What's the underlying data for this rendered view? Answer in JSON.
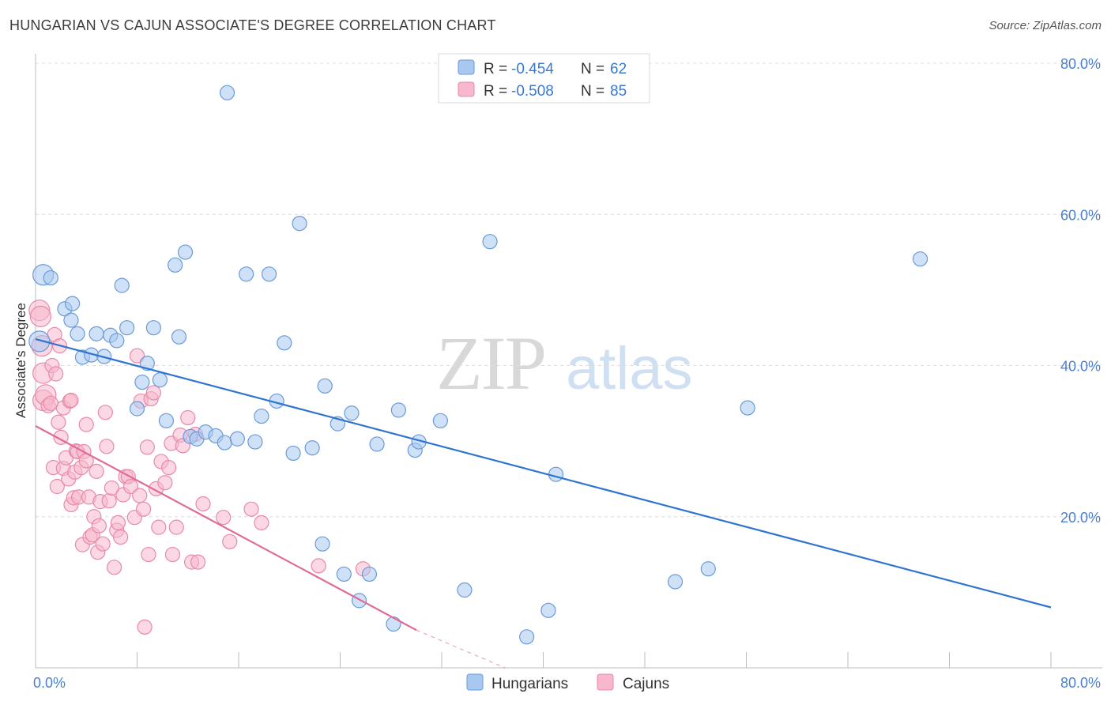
{
  "title": "HUNGARIAN VS CAJUN ASSOCIATE'S DEGREE CORRELATION CHART",
  "source": "Source: ZipAtlas.com",
  "watermark": {
    "zip": "ZIP",
    "atlas": "atlas"
  },
  "legend": {
    "rows": [
      {
        "r_label": "R = ",
        "r_value": "-0.454",
        "n_label": "N = ",
        "n_value": "62",
        "color": "#a8c8f0"
      },
      {
        "r_label": "R = ",
        "r_value": "-0.508",
        "n_label": "N = ",
        "n_value": "85",
        "color": "#f7b8cc"
      }
    ]
  },
  "bottom_legend": [
    "Hungarians",
    "Cajuns"
  ],
  "chart_data": {
    "type": "scatter",
    "title": "HUNGARIAN VS CAJUN ASSOCIATE'S DEGREE CORRELATION CHART",
    "xlabel": "",
    "ylabel": "Associate's Degree",
    "xlim": [
      0,
      80
    ],
    "ylim": [
      0,
      80
    ],
    "x_tick_labels": [
      "0.0%",
      "80.0%"
    ],
    "y_tick_labels": [
      "20.0%",
      "40.0%",
      "60.0%",
      "80.0%"
    ],
    "y_ticks": [
      20,
      40,
      60,
      80
    ],
    "series": [
      {
        "name": "Hungarians",
        "color": "#a8c8f0",
        "stroke": "#6a9ad8",
        "line_color": "#2f74d0",
        "trend": {
          "x0": 0,
          "y0": 43.5,
          "x1": 80,
          "y1": 8.0
        },
        "points": [
          [
            0.3,
            43.2
          ],
          [
            0.6,
            52.0
          ],
          [
            1.2,
            51.6
          ],
          [
            2.3,
            47.5
          ],
          [
            2.9,
            48.2
          ],
          [
            2.8,
            46.0
          ],
          [
            3.3,
            44.2
          ],
          [
            3.7,
            41.1
          ],
          [
            4.4,
            41.4
          ],
          [
            4.8,
            44.2
          ],
          [
            5.4,
            41.2
          ],
          [
            5.9,
            44.0
          ],
          [
            6.4,
            43.3
          ],
          [
            6.8,
            50.6
          ],
          [
            7.2,
            45.0
          ],
          [
            8.0,
            34.3
          ],
          [
            8.4,
            37.8
          ],
          [
            8.8,
            40.3
          ],
          [
            9.3,
            45.0
          ],
          [
            9.8,
            38.1
          ],
          [
            10.3,
            32.7
          ],
          [
            11.0,
            53.3
          ],
          [
            11.3,
            43.8
          ],
          [
            11.8,
            55.0
          ],
          [
            12.2,
            30.6
          ],
          [
            12.7,
            30.3
          ],
          [
            13.4,
            31.2
          ],
          [
            14.2,
            30.7
          ],
          [
            14.9,
            29.8
          ],
          [
            15.1,
            76.1
          ],
          [
            15.9,
            30.3
          ],
          [
            16.6,
            52.1
          ],
          [
            17.3,
            29.9
          ],
          [
            17.8,
            33.3
          ],
          [
            18.4,
            52.1
          ],
          [
            19.0,
            35.3
          ],
          [
            19.6,
            43.0
          ],
          [
            20.3,
            28.4
          ],
          [
            20.8,
            58.8
          ],
          [
            21.8,
            29.1
          ],
          [
            22.6,
            16.4
          ],
          [
            22.8,
            37.3
          ],
          [
            23.8,
            32.3
          ],
          [
            24.3,
            12.4
          ],
          [
            24.9,
            33.7
          ],
          [
            25.5,
            8.9
          ],
          [
            26.3,
            12.4
          ],
          [
            26.9,
            29.6
          ],
          [
            28.2,
            5.8
          ],
          [
            28.6,
            34.1
          ],
          [
            29.9,
            28.8
          ],
          [
            30.2,
            29.9
          ],
          [
            31.9,
            32.7
          ],
          [
            33.8,
            10.3
          ],
          [
            35.8,
            56.4
          ],
          [
            38.7,
            4.1
          ],
          [
            40.4,
            7.6
          ],
          [
            41.0,
            25.6
          ],
          [
            50.4,
            11.4
          ],
          [
            53.0,
            13.1
          ],
          [
            56.1,
            34.4
          ],
          [
            69.7,
            54.1
          ]
        ]
      },
      {
        "name": "Cajuns",
        "color": "#f7b8cc",
        "stroke": "#e889a8",
        "line_color": "#e06a98",
        "trend": {
          "x0": 0,
          "y0": 32.0,
          "x1": 30.0,
          "y1": 5.0
        },
        "trend_dashed": {
          "x0": 30.0,
          "y0": 5.0,
          "x1": 37.0,
          "y1": 0
        },
        "points": [
          [
            0.3,
            47.3
          ],
          [
            0.4,
            46.5
          ],
          [
            0.5,
            42.6
          ],
          [
            0.6,
            35.4
          ],
          [
            0.6,
            39.0
          ],
          [
            0.8,
            36.1
          ],
          [
            1.0,
            34.7
          ],
          [
            1.2,
            35.0
          ],
          [
            1.3,
            40.0
          ],
          [
            1.4,
            26.5
          ],
          [
            1.5,
            44.1
          ],
          [
            1.6,
            38.9
          ],
          [
            1.7,
            24.0
          ],
          [
            1.8,
            32.5
          ],
          [
            1.9,
            42.6
          ],
          [
            2.0,
            30.5
          ],
          [
            2.2,
            26.4
          ],
          [
            2.2,
            34.4
          ],
          [
            2.4,
            27.8
          ],
          [
            2.6,
            25.0
          ],
          [
            2.7,
            35.3
          ],
          [
            2.8,
            21.6
          ],
          [
            2.8,
            35.4
          ],
          [
            3.0,
            22.5
          ],
          [
            3.1,
            25.9
          ],
          [
            3.2,
            28.7
          ],
          [
            3.3,
            28.6
          ],
          [
            3.4,
            22.6
          ],
          [
            3.6,
            26.5
          ],
          [
            3.7,
            16.3
          ],
          [
            3.8,
            28.6
          ],
          [
            4.0,
            27.4
          ],
          [
            4.0,
            32.2
          ],
          [
            4.2,
            22.6
          ],
          [
            4.3,
            17.3
          ],
          [
            4.5,
            17.6
          ],
          [
            4.6,
            20.0
          ],
          [
            4.8,
            26.0
          ],
          [
            4.9,
            15.3
          ],
          [
            5.0,
            18.8
          ],
          [
            5.1,
            22.0
          ],
          [
            5.3,
            16.4
          ],
          [
            5.5,
            33.8
          ],
          [
            5.6,
            29.3
          ],
          [
            5.8,
            22.1
          ],
          [
            6.0,
            23.8
          ],
          [
            6.2,
            13.3
          ],
          [
            6.4,
            18.2
          ],
          [
            6.5,
            19.2
          ],
          [
            6.7,
            17.3
          ],
          [
            6.9,
            22.9
          ],
          [
            7.1,
            25.3
          ],
          [
            7.3,
            25.3
          ],
          [
            7.5,
            24.0
          ],
          [
            7.8,
            19.9
          ],
          [
            8.0,
            41.3
          ],
          [
            8.2,
            22.8
          ],
          [
            8.3,
            35.3
          ],
          [
            8.5,
            21.0
          ],
          [
            8.6,
            5.4
          ],
          [
            8.8,
            29.2
          ],
          [
            8.9,
            15.0
          ],
          [
            9.1,
            35.6
          ],
          [
            9.3,
            36.4
          ],
          [
            9.5,
            23.7
          ],
          [
            9.7,
            18.6
          ],
          [
            9.9,
            27.3
          ],
          [
            10.2,
            24.5
          ],
          [
            10.5,
            26.5
          ],
          [
            10.7,
            29.7
          ],
          [
            10.8,
            15.0
          ],
          [
            11.1,
            18.6
          ],
          [
            11.4,
            30.8
          ],
          [
            11.6,
            29.4
          ],
          [
            12.0,
            33.1
          ],
          [
            12.3,
            14.0
          ],
          [
            12.6,
            30.9
          ],
          [
            12.8,
            14.0
          ],
          [
            13.2,
            21.7
          ],
          [
            14.8,
            19.9
          ],
          [
            15.3,
            16.7
          ],
          [
            17.0,
            21.0
          ],
          [
            17.8,
            19.2
          ],
          [
            22.3,
            13.5
          ],
          [
            25.8,
            13.1
          ]
        ]
      }
    ]
  }
}
